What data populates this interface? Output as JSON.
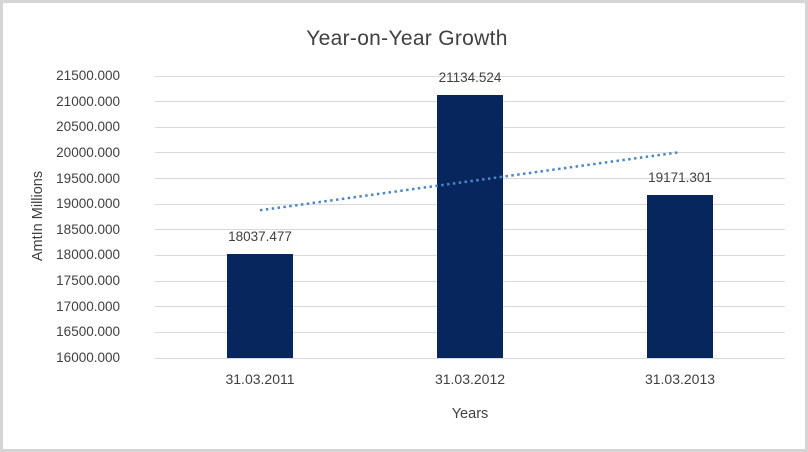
{
  "window": {
    "background_color": "#ffffff",
    "frame_border_color": "#d5d5d5"
  },
  "chart_data": {
    "type": "bar",
    "title": "Year-on-Year Growth",
    "xlabel": "Years",
    "ylabel": "AmtIn Millions",
    "categories": [
      "31.03.2011",
      "31.03.2012",
      "31.03.2013"
    ],
    "values": [
      18037.477,
      21134.524,
      19171.301
    ],
    "value_labels": [
      "18037.477",
      "21134.524",
      "19171.301"
    ],
    "y_ticks": [
      "21500.000",
      "21000.000",
      "20500.000",
      "20000.000",
      "19500.000",
      "19000.000",
      "18500.000",
      "18000.000",
      "17500.000",
      "17000.000",
      "16500.000",
      "16000.000"
    ],
    "ylim": [
      16000,
      21500
    ],
    "tick_step": 500,
    "grid": true,
    "legend": false,
    "bar_color": "#08265e",
    "grid_color": "#d9d9d9",
    "text_color": "#404040",
    "trendline": {
      "type": "linear",
      "style": "dotted",
      "color": "#4c86c8",
      "start_value": 18880.9,
      "end_value": 20014.7
    }
  }
}
